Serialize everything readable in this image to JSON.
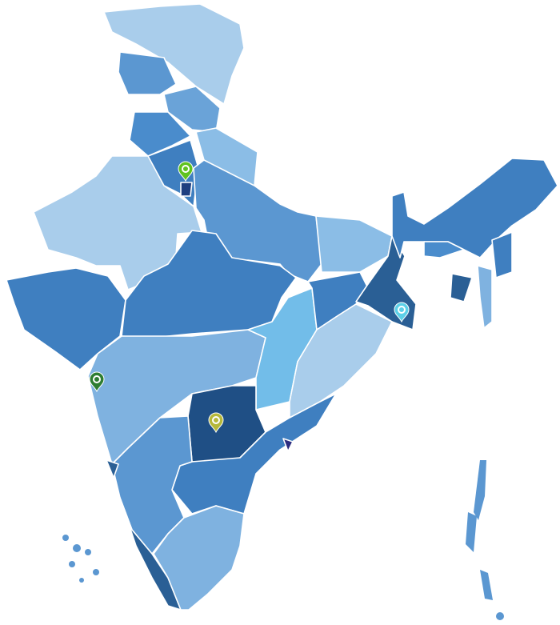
{
  "map": {
    "background": "#ffffff",
    "border_color": "#ffffff",
    "palette": {
      "lightest": "#a9cdeb",
      "light": "#8bbde6",
      "light_mid": "#7fb2e0",
      "cyan": "#72bde9",
      "mid": "#5b97d1",
      "mid_alt": "#6aa3d8",
      "mid_dark": "#4a8ccc",
      "dark": "#3f7fc0",
      "darker": "#2a5f95",
      "darkest": "#1f4f85",
      "capital": "#1f3f80",
      "purple": "#2d2d80"
    },
    "markers": [
      {
        "icon": "map-pin-icon",
        "color": "#5fc21f"
      },
      {
        "icon": "map-pin-icon",
        "color": "#2e7d32"
      },
      {
        "icon": "map-pin-icon",
        "color": "#b5b83a"
      },
      {
        "icon": "map-pin-icon",
        "color": "#5cd0e8"
      }
    ]
  }
}
